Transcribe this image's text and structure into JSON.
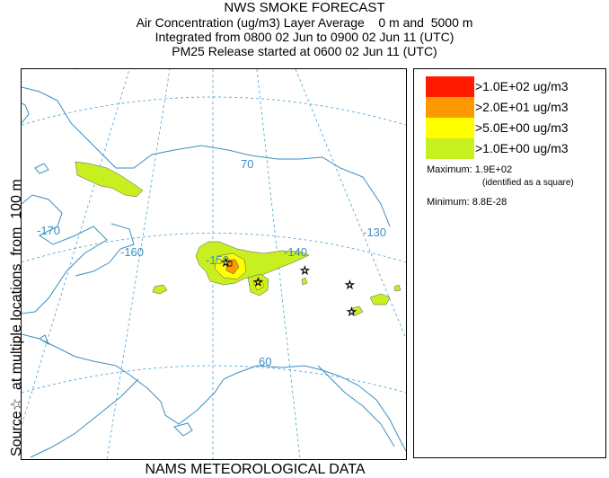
{
  "title": {
    "line1": "NWS SMOKE FORECAST",
    "line2": "Air Concentration (ug/m3) Layer Average    0 m and  5000 m",
    "line3": "Integrated from 0800 02 Jun to 0900 02 Jun 11 (UTC)",
    "line4": "PM25 Release started at 0600 02 Jun 11 (UTC)"
  },
  "side_label": "Source☆  at multiple locations  from  100 m",
  "footer": "NAMS METEOROLOGICAL DATA",
  "map": {
    "labels": {
      "lon_170": "-170",
      "lon_160": "-160",
      "lon_150": "-150",
      "lon_140": "-140",
      "lon_130": "-130",
      "lat_70": "70",
      "lat_60": "60"
    },
    "colors": {
      "coast": "#3a8fc0",
      "grid": "#4a9fd0",
      "level1": "#c8f020",
      "level2": "#ffff00",
      "level3": "#ff9900",
      "level4": "#ff1a00"
    }
  },
  "legend": {
    "levels": [
      {
        "label": ">1.0E+02 ug/m3",
        "color": "#ff1a00"
      },
      {
        "label": ">2.0E+01 ug/m3",
        "color": "#ff9900"
      },
      {
        "label": ">5.0E+00 ug/m3",
        "color": "#ffff00"
      },
      {
        "label": ">1.0E+00 ug/m3",
        "color": "#c8f020"
      }
    ],
    "maximum_label": "Maximum: 1.9E+02",
    "maximum_note": "(identified as a square)",
    "minimum_label": "Minimum: 8.8E-28"
  }
}
